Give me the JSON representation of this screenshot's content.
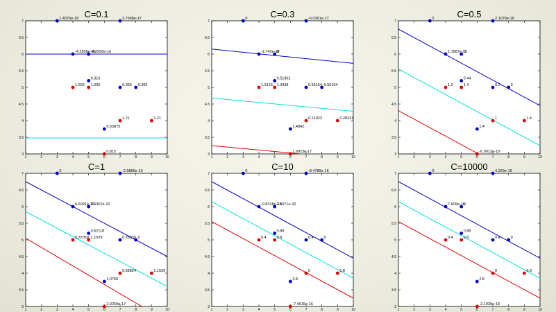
{
  "chart_data": [
    {
      "type": "scatter",
      "title": "C=0.1",
      "xlim": [
        1,
        10
      ],
      "ylim": [
        3,
        7
      ],
      "xticks": [
        1,
        2,
        3,
        4,
        5,
        6,
        7,
        8,
        9,
        10
      ],
      "yticks": [
        3,
        3.5,
        4,
        4.5,
        5,
        5.5,
        6,
        6.5,
        7
      ],
      "grid": false,
      "points": [
        {
          "x": 3,
          "y": 7,
          "class": "blue",
          "label": "1.4076e-18"
        },
        {
          "x": 7,
          "y": 7,
          "class": "blue",
          "label": "3.7968e-17"
        },
        {
          "x": 4,
          "y": 6,
          "class": "blue",
          "label": "-4.2956e-16"
        },
        {
          "x": 5,
          "y": 6,
          "class": "blue",
          "label": "-4.2956e-16"
        },
        {
          "x": 5,
          "y": 5.2,
          "class": "blue",
          "label": "0.316"
        },
        {
          "x": 7,
          "y": 5,
          "class": "blue",
          "label": "0.395"
        },
        {
          "x": 8,
          "y": 5,
          "class": "blue",
          "label": "0.395"
        },
        {
          "x": 6,
          "y": 3.75,
          "class": "blue",
          "label": "0.63875"
        },
        {
          "x": 4,
          "y": 5,
          "class": "red",
          "label": "1.605"
        },
        {
          "x": 5,
          "y": 5,
          "class": "red",
          "label": "1.605"
        },
        {
          "x": 7,
          "y": 4,
          "class": "red",
          "label": "1.21"
        },
        {
          "x": 9,
          "y": 4,
          "class": "red",
          "label": "1.21"
        },
        {
          "x": 6,
          "y": 3,
          "class": "red",
          "label": "0.815"
        }
      ],
      "lines": [
        {
          "name": "blue",
          "color": "#0000cc",
          "y_at_x1": 6.0,
          "y_at_x10": 6.0
        },
        {
          "name": "cyan",
          "color": "#00e0e0",
          "y_at_x1": 3.48,
          "y_at_x10": 3.48
        },
        {
          "name": "red",
          "color": "#e00000",
          "y_at_x1": 2.95,
          "y_at_x10": 2.95
        }
      ]
    },
    {
      "type": "scatter",
      "title": "C=0.3",
      "xlim": [
        1,
        10
      ],
      "ylim": [
        3,
        7
      ],
      "xticks": [
        1,
        2,
        3,
        4,
        5,
        6,
        7,
        8,
        9,
        10
      ],
      "yticks": [
        3,
        3.5,
        4,
        4.5,
        5,
        5.5,
        6,
        6.5,
        7
      ],
      "grid": false,
      "points": [
        {
          "x": 3,
          "y": 7,
          "class": "blue",
          "label": "0"
        },
        {
          "x": 7,
          "y": 7,
          "class": "blue",
          "label": "-6.0361e-17"
        },
        {
          "x": 4,
          "y": 6,
          "class": "blue",
          "label": "-1.742e-18"
        },
        {
          "x": 5,
          "y": 6,
          "class": "blue",
          "label": "0"
        },
        {
          "x": 5,
          "y": 5.2,
          "class": "blue",
          "label": "0.51862"
        },
        {
          "x": 7,
          "y": 5,
          "class": "blue",
          "label": "0.56154"
        },
        {
          "x": 8,
          "y": 5,
          "class": "blue",
          "label": "0.56154"
        },
        {
          "x": 6,
          "y": 3.75,
          "class": "blue",
          "label": "1.4842"
        },
        {
          "x": 4,
          "y": 5,
          "class": "red",
          "label": "1.3123"
        },
        {
          "x": 5,
          "y": 5,
          "class": "red",
          "label": "1.3438"
        },
        {
          "x": 7,
          "y": 4,
          "class": "red",
          "label": "0.21923"
        },
        {
          "x": 9,
          "y": 4,
          "class": "red",
          "label": "0.28231"
        },
        {
          "x": 6,
          "y": 3,
          "class": "red",
          "label": "1.9023e-17"
        }
      ],
      "lines": [
        {
          "name": "blue",
          "color": "#0000cc",
          "y_at_x1": 6.15,
          "y_at_x10": 5.72
        },
        {
          "name": "cyan",
          "color": "#00e0e0",
          "y_at_x1": 4.68,
          "y_at_x10": 4.28
        },
        {
          "name": "red",
          "color": "#e00000",
          "y_at_x1": 3.25,
          "y_at_x10": 2.85
        }
      ]
    },
    {
      "type": "scatter",
      "title": "C=0.5",
      "xlim": [
        1,
        10
      ],
      "ylim": [
        3,
        7
      ],
      "xticks": [
        1,
        2,
        3,
        4,
        5,
        6,
        7,
        8,
        9,
        10
      ],
      "yticks": [
        3,
        3.5,
        4,
        4.5,
        5,
        5.5,
        6,
        6.5,
        7
      ],
      "grid": false,
      "points": [
        {
          "x": 3,
          "y": 7,
          "class": "blue",
          "label": "0"
        },
        {
          "x": 7,
          "y": 7,
          "class": "blue",
          "label": "2.1079e-16"
        },
        {
          "x": 4,
          "y": 6,
          "class": "blue",
          "label": "1.1587e-16"
        },
        {
          "x": 5,
          "y": 6,
          "class": "blue",
          "label": "0"
        },
        {
          "x": 5,
          "y": 5.2,
          "class": "blue",
          "label": "0.44"
        },
        {
          "x": 7,
          "y": 5,
          "class": "blue",
          "label": "0.2"
        },
        {
          "x": 8,
          "y": 5,
          "class": "blue",
          "label": "0"
        },
        {
          "x": 6,
          "y": 3.75,
          "class": "blue",
          "label": "1.4"
        },
        {
          "x": 4,
          "y": 5,
          "class": "red",
          "label": "1.2"
        },
        {
          "x": 5,
          "y": 5,
          "class": "red",
          "label": "1.4"
        },
        {
          "x": 7,
          "y": 4,
          "class": "red",
          "label": "1"
        },
        {
          "x": 9,
          "y": 4,
          "class": "red",
          "label": "1.4"
        },
        {
          "x": 6,
          "y": 3,
          "class": "red",
          "label": "-6.9912e-19"
        }
      ],
      "lines": [
        {
          "name": "blue",
          "color": "#0000cc",
          "y_at_x1": 6.75,
          "y_at_x10": 4.45
        },
        {
          "name": "cyan",
          "color": "#00e0e0",
          "y_at_x1": 5.55,
          "y_at_x10": 3.25
        },
        {
          "name": "red",
          "color": "#e00000",
          "y_at_x1": 4.3,
          "y_at_x10": 2.0
        }
      ]
    },
    {
      "type": "scatter",
      "title": "C=1",
      "xlim": [
        1,
        10
      ],
      "ylim": [
        3,
        7
      ],
      "xticks": [
        1,
        2,
        3,
        4,
        5,
        6,
        7,
        8,
        9,
        10
      ],
      "yticks": [
        3,
        3.5,
        4,
        4.5,
        5,
        5.5,
        6,
        6.5,
        7
      ],
      "grid": false,
      "points": [
        {
          "x": 3,
          "y": 7,
          "class": "blue",
          "label": "0"
        },
        {
          "x": 7,
          "y": 7,
          "class": "blue",
          "label": "-2.9856e-16"
        },
        {
          "x": 4,
          "y": 6,
          "class": "blue",
          "label": "6.6091e-16"
        },
        {
          "x": 5,
          "y": 6,
          "class": "blue",
          "label": "2.5362e-32"
        },
        {
          "x": 5,
          "y": 5.2,
          "class": "blue",
          "label": "0.62118"
        },
        {
          "x": 7,
          "y": 5,
          "class": "blue",
          "label": "0.28235"
        },
        {
          "x": 8,
          "y": 5,
          "class": "blue",
          "label": "0"
        },
        {
          "x": 6,
          "y": 3.75,
          "class": "blue",
          "label": "1.0765"
        },
        {
          "x": 4,
          "y": 5,
          "class": "red",
          "label": "0.37059"
        },
        {
          "x": 5,
          "y": 5,
          "class": "red",
          "label": "1.1529"
        },
        {
          "x": 7,
          "y": 4,
          "class": "red",
          "label": "0.58824"
        },
        {
          "x": 9,
          "y": 4,
          "class": "red",
          "label": "1.1529"
        },
        {
          "x": 6,
          "y": 3,
          "class": "red",
          "label": "2.0259e-17"
        }
      ],
      "lines": [
        {
          "name": "blue",
          "color": "#0000cc",
          "y_at_x1": 6.75,
          "y_at_x10": 4.5
        },
        {
          "name": "cyan",
          "color": "#00e0e0",
          "y_at_x1": 5.85,
          "y_at_x10": 3.6
        },
        {
          "name": "red",
          "color": "#e00000",
          "y_at_x1": 5.05,
          "y_at_x10": 2.55
        }
      ]
    },
    {
      "type": "scatter",
      "title": "C=10",
      "xlim": [
        1,
        10
      ],
      "ylim": [
        3,
        7
      ],
      "xticks": [
        1,
        2,
        3,
        4,
        5,
        6,
        7,
        8,
        9,
        10
      ],
      "yticks": [
        3,
        3.5,
        4,
        4.5,
        5,
        5.5,
        6,
        6.5,
        7
      ],
      "grid": false,
      "points": [
        {
          "x": 3,
          "y": 7,
          "class": "blue",
          "label": "0"
        },
        {
          "x": 7,
          "y": 7,
          "class": "blue",
          "label": "-8.4789e-16"
        },
        {
          "x": 4,
          "y": 6,
          "class": "blue",
          "label": "-9.8318e-16"
        },
        {
          "x": 5,
          "y": 6,
          "class": "blue",
          "label": "2.5071e-32"
        },
        {
          "x": 5,
          "y": 5.2,
          "class": "blue",
          "label": "0.88"
        },
        {
          "x": 7,
          "y": 5,
          "class": "blue",
          "label": "0.4"
        },
        {
          "x": 8,
          "y": 5,
          "class": "blue",
          "label": "0"
        },
        {
          "x": 6,
          "y": 3.75,
          "class": "blue",
          "label": "2.8"
        },
        {
          "x": 4,
          "y": 5,
          "class": "red",
          "label": "0.4"
        },
        {
          "x": 5,
          "y": 5,
          "class": "red",
          "label": "0.8"
        },
        {
          "x": 7,
          "y": 4,
          "class": "red",
          "label": "0"
        },
        {
          "x": 9,
          "y": 4,
          "class": "red",
          "label": "0.8"
        },
        {
          "x": 6,
          "y": 3,
          "class": "red",
          "label": "-7.4615e-16"
        }
      ],
      "lines": [
        {
          "name": "blue",
          "color": "#0000cc",
          "y_at_x1": 6.75,
          "y_at_x10": 4.45
        },
        {
          "name": "cyan",
          "color": "#00e0e0",
          "y_at_x1": 6.15,
          "y_at_x10": 3.85
        },
        {
          "name": "red",
          "color": "#e00000",
          "y_at_x1": 5.55,
          "y_at_x10": 3.25
        }
      ]
    },
    {
      "type": "scatter",
      "title": "C=10000",
      "xlim": [
        1,
        10
      ],
      "ylim": [
        3,
        7
      ],
      "xticks": [
        1,
        2,
        3,
        4,
        5,
        6,
        7,
        8,
        9,
        10
      ],
      "yticks": [
        3,
        3.5,
        4,
        4.5,
        5,
        5.5,
        6,
        6.5,
        7
      ],
      "grid": false,
      "points": [
        {
          "x": 3,
          "y": 7,
          "class": "blue",
          "label": "0"
        },
        {
          "x": 7,
          "y": 7,
          "class": "blue",
          "label": "4.229e-16"
        },
        {
          "x": 4,
          "y": 6,
          "class": "blue",
          "label": "7.609e-16"
        },
        {
          "x": 5,
          "y": 6,
          "class": "blue",
          "label": "0"
        },
        {
          "x": 5,
          "y": 5.2,
          "class": "blue",
          "label": "0.88"
        },
        {
          "x": 7,
          "y": 5,
          "class": "blue",
          "label": "0.4"
        },
        {
          "x": 8,
          "y": 5,
          "class": "blue",
          "label": "0"
        },
        {
          "x": 6,
          "y": 3.75,
          "class": "blue",
          "label": "2.8"
        },
        {
          "x": 4,
          "y": 5,
          "class": "red",
          "label": "0.4"
        },
        {
          "x": 5,
          "y": 5,
          "class": "red",
          "label": "0.8"
        },
        {
          "x": 7,
          "y": 4,
          "class": "red",
          "label": "0"
        },
        {
          "x": 9,
          "y": 4,
          "class": "red",
          "label": "0.8"
        },
        {
          "x": 6,
          "y": 3,
          "class": "red",
          "label": "-2.1030e-18"
        }
      ],
      "lines": [
        {
          "name": "blue",
          "color": "#0000cc",
          "y_at_x1": 6.75,
          "y_at_x10": 4.45
        },
        {
          "name": "cyan",
          "color": "#00e0e0",
          "y_at_x1": 6.15,
          "y_at_x10": 3.85
        },
        {
          "name": "red",
          "color": "#e00000",
          "y_at_x1": 5.55,
          "y_at_x10": 3.25
        }
      ]
    }
  ],
  "colors": {
    "blue_point": "#0000cc",
    "red_point": "#dd0000",
    "axes_bg": "#ffffff"
  }
}
